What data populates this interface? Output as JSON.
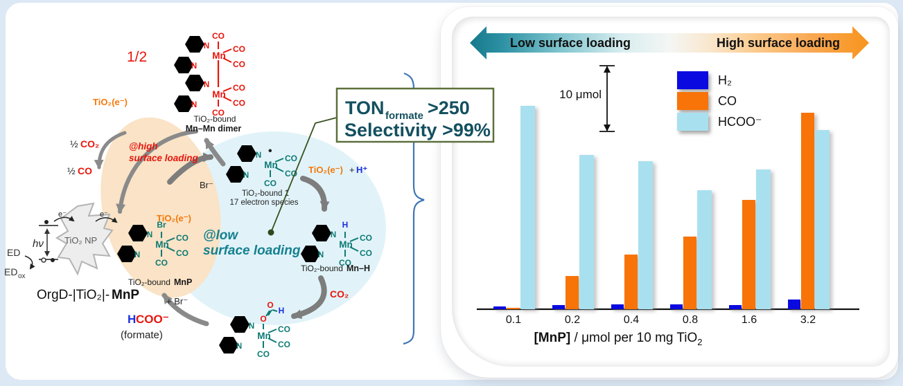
{
  "colors": {
    "h2_bar": "#0a0ae0",
    "co_bar": "#f87408",
    "formate_bar": "#a9e0ef",
    "teal_structures": "#0d7a74",
    "red_structures": "#e8150c",
    "orange_text": "#f5780a",
    "dark_teal_text": "#14505f",
    "banner_teal": "#1b7f93",
    "banner_orange": "#f7941d"
  },
  "left": {
    "labels": {
      "half_fraction": "1/2",
      "co": "CO",
      "mn": "Mn",
      "n": "N",
      "radical_dot": "•",
      "dimer_caption_line1": "TiO₂-bound",
      "dimer_caption_line2": "Mn–Mn dimer",
      "tio2e": "TiO₂(e⁻)",
      "half": "½",
      "co2": "CO₂",
      "at_high_line1": "@high",
      "at_high_line2": "surface loading",
      "at_low_line1": "@low",
      "at_low_line2": "surface loading",
      "e_minus": "e⁻",
      "hv": "hν",
      "ed": "ED",
      "ed_ox_base": "ED",
      "ed_ox_sub": "ox",
      "tio2_np": "TiO₂ NP",
      "orgd_prefix": "OrgD-|TiO₂|-",
      "orgd_bold": "MnP",
      "br_minus": "Br⁻",
      "bound1_line1": "TiO₂-bound 1",
      "bound1_line2": "17 electron species",
      "plus": "+",
      "h_plus": "H⁺",
      "br": "Br",
      "h": "H",
      "o": "O",
      "bound_prefix": "TiO₂-bound",
      "mnp_bold": "MnP",
      "mnh_bold": "Mn–H",
      "plus_br": "+ Br⁻",
      "hcoo_h": "H",
      "hcoo_rest": "COO⁻",
      "formate_caption": "(formate)"
    },
    "ton_box": {
      "ton": "TON",
      "ton_sub": "formate",
      "ton_value": ">250",
      "selectivity": "Selectivity >99%"
    }
  },
  "right": {
    "low_label": "Low surface loading",
    "high_label": "High surface loading",
    "scale_label": "10 μmol",
    "xlabel_bold": "[MnP]",
    "xlabel_rest": " / μmol per 10 mg TiO",
    "xlabel_sub": "2"
  },
  "chart_data": {
    "type": "bar",
    "categories": [
      "0.1",
      "0.2",
      "0.4",
      "0.8",
      "1.6",
      "3.2"
    ],
    "series": [
      {
        "name": "H₂",
        "color": "#0a0ae0",
        "values": [
          0.4,
          0.6,
          0.7,
          0.7,
          0.6,
          1.4
        ]
      },
      {
        "name": "CO",
        "color": "#f87408",
        "values": [
          0.2,
          4.9,
          8.1,
          10.7,
          16.1,
          29.0
        ]
      },
      {
        "name": "HCOO⁻",
        "color": "#a9e0ef",
        "values": [
          30.0,
          22.8,
          21.8,
          17.5,
          20.6,
          26.4
        ]
      }
    ],
    "values_unit": "μmol",
    "scale_bar": "10 μmol",
    "xlabel": "[MnP] / μmol per 10 mg TiO₂",
    "legend_position": "upper center",
    "axes": "x baseline only, no y-axis ticks"
  }
}
